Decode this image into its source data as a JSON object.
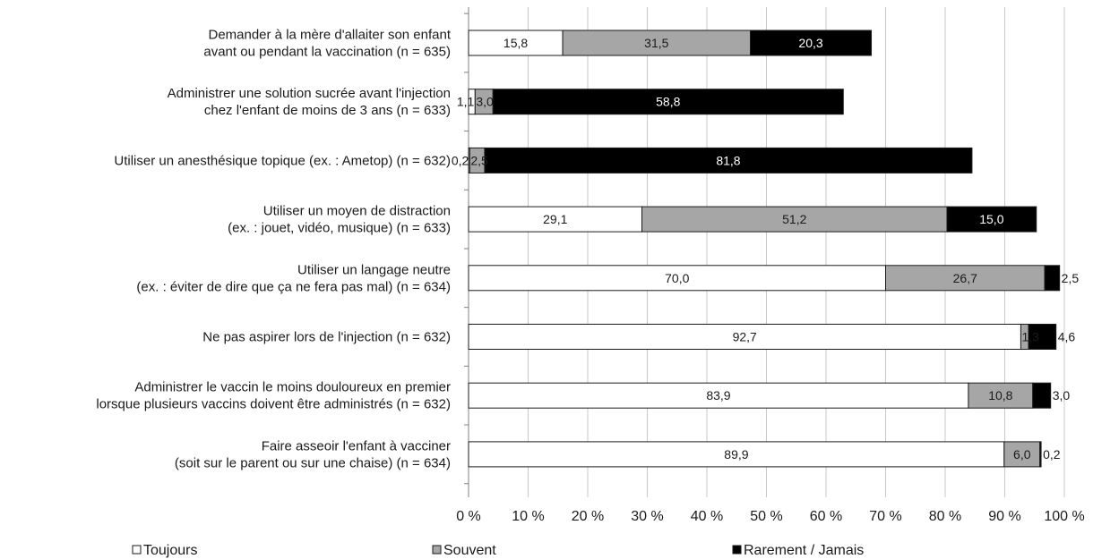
{
  "chart_data": {
    "type": "bar",
    "orientation": "horizontal",
    "stacked": true,
    "categories": [
      [
        "Demander à la mère d'allaiter son enfant",
        "avant ou pendant la vaccination (n = 635)"
      ],
      [
        "Administrer une solution sucrée avant l'injection",
        "chez l'enfant de moins de 3 ans (n = 633)"
      ],
      [
        "Utiliser un anesthésique topique (ex. : Ametop) (n = 632)"
      ],
      [
        "Utiliser un moyen de distraction",
        "(ex. : jouet, vidéo, musique) (n = 633)"
      ],
      [
        "Utiliser un langage neutre",
        "(ex. : éviter de dire que ça ne fera pas mal) (n = 634)"
      ],
      [
        "Ne pas aspirer lors de l'injection (n = 632)"
      ],
      [
        "Administrer le vaccin le moins douloureux en premier",
        "lorsque plusieurs vaccins doivent être administrés (n = 632)"
      ],
      [
        "Faire asseoir l'enfant à vacciner",
        "(soit sur le parent ou sur une chaise) (n = 634)"
      ]
    ],
    "series": [
      {
        "name": "Toujours",
        "color": "#ffffff",
        "values": [
          15.8,
          1.1,
          0.2,
          29.1,
          70.0,
          92.7,
          83.9,
          89.9
        ],
        "labels": [
          "15,8",
          "1,1",
          "0,2",
          "29,1",
          "70,0",
          "92,7",
          "83,9",
          "89,9"
        ]
      },
      {
        "name": "Souvent",
        "color": "#a6a6a6",
        "values": [
          31.5,
          3.0,
          2.5,
          51.2,
          26.7,
          1.3,
          10.8,
          6.0
        ],
        "labels": [
          "31,5",
          "3,0",
          "2,5",
          "51,2",
          "26,7",
          "1,3",
          "10,8",
          "6,0"
        ]
      },
      {
        "name": "Rarement / Jamais",
        "color": "#000000",
        "values": [
          20.3,
          58.8,
          81.8,
          15.0,
          2.5,
          4.6,
          3.0,
          0.2
        ],
        "labels": [
          "20,3",
          "58,8",
          "81,8",
          "15,0",
          "2,5",
          "4,6",
          "3,0",
          "0,2"
        ]
      }
    ],
    "x_ticks": [
      "0 %",
      "10 %",
      "20 %",
      "30 %",
      "40 %",
      "50 %",
      "60 %",
      "70 %",
      "80 %",
      "90 %",
      "100 %"
    ],
    "xlim": [
      0,
      100
    ],
    "grid": true,
    "legend_position": "bottom"
  }
}
